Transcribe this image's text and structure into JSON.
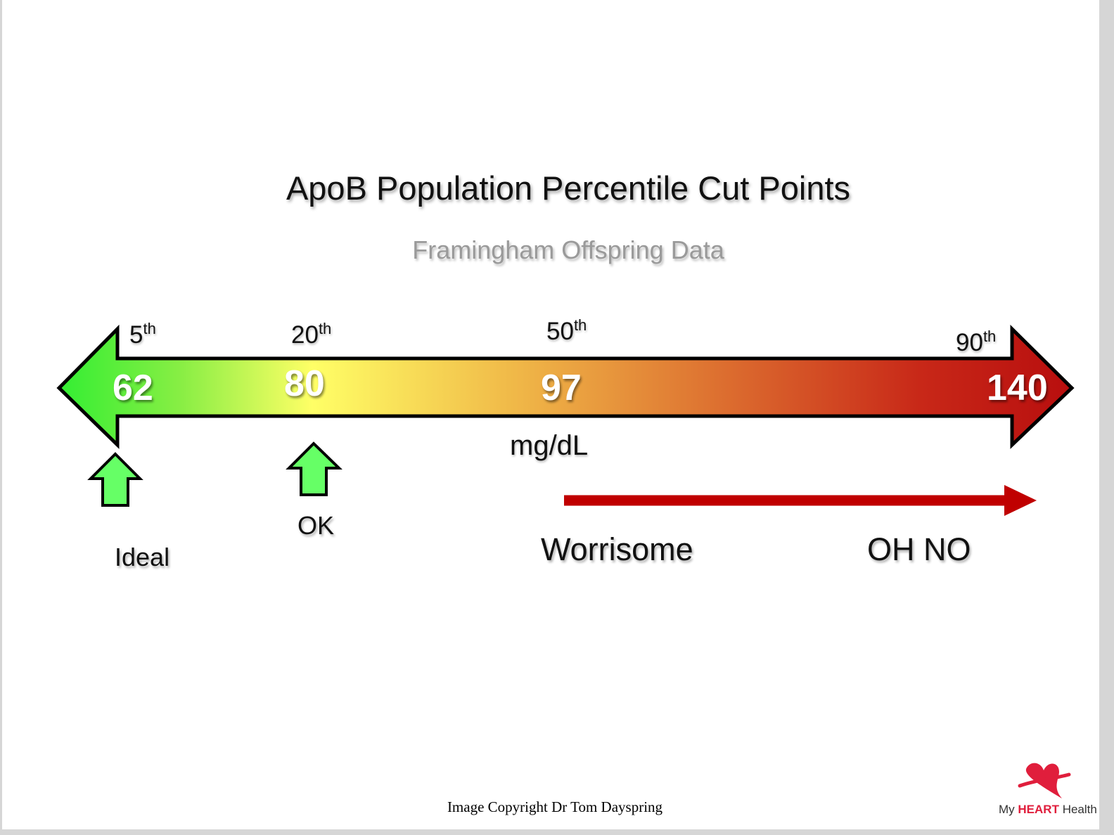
{
  "title": "ApoB Population Percentile Cut Points",
  "subtitle": "Framingham Offspring Data",
  "scale": {
    "unit": "mg/dL",
    "cut_points": [
      {
        "percentile": "5",
        "suffix": "th",
        "value": "62"
      },
      {
        "percentile": "20",
        "suffix": "th",
        "value": "80"
      },
      {
        "percentile": "50",
        "suffix": "th",
        "value": "97"
      },
      {
        "percentile": "90",
        "suffix": "th",
        "value": "140"
      }
    ],
    "gradient_colors": [
      "#33ee33",
      "#ffff66",
      "#e08030",
      "#c01010"
    ]
  },
  "markers": {
    "ideal": "Ideal",
    "ok": "OK",
    "worrisome": "Worrisome",
    "oh_no": "OH NO"
  },
  "colors": {
    "marker_green": "#66ff66",
    "worrisome_arrow": "#c00000"
  },
  "footer": {
    "copyright": "Image Copyright Dr Tom Dayspring",
    "logo_my": "My",
    "logo_heart": "HEART",
    "logo_health": "Health"
  }
}
